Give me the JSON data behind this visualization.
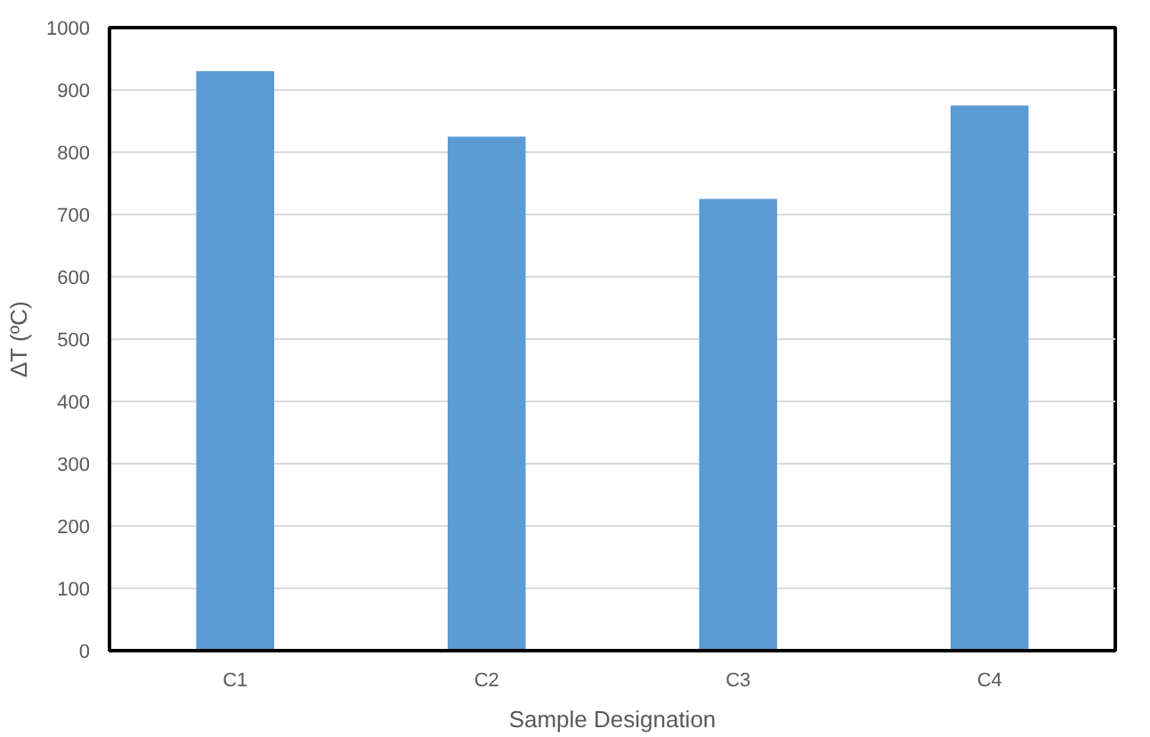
{
  "chart_data": {
    "type": "bar",
    "categories": [
      "C1",
      "C2",
      "C3",
      "C4"
    ],
    "values": [
      930,
      825,
      725,
      875
    ],
    "color": "#5b9bd5",
    "xlabel": "Sample Designation",
    "ylabel": "ΔT (ºC)",
    "ylim": [
      0,
      1000
    ],
    "yticks": [
      0,
      100,
      200,
      300,
      400,
      500,
      600,
      700,
      800,
      900,
      1000
    ],
    "grid": "y"
  }
}
